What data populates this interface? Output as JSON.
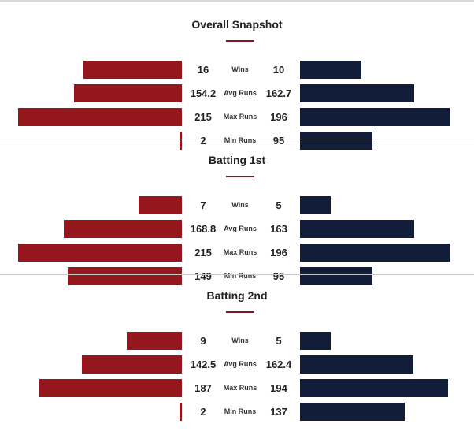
{
  "colors": {
    "left": "#96161e",
    "right": "#121d3a",
    "accent": "#7a1a26"
  },
  "chart_data": {
    "type": "bar",
    "orientation": "diverging-horizontal",
    "series": [
      {
        "color": "#96161e"
      },
      {
        "color": "#121d3a"
      }
    ],
    "sections": [
      {
        "title": "Overall Snapshot",
        "rows": [
          {
            "metric": "Wins",
            "left": 16,
            "left_label": "16",
            "right": 10,
            "right_label": "10"
          },
          {
            "metric": "Avg Runs",
            "left": 154.2,
            "left_label": "154.2",
            "right": 162.7,
            "right_label": "162.7"
          },
          {
            "metric": "Max Runs",
            "left": 215,
            "left_label": "215",
            "right": 196,
            "right_label": "196"
          },
          {
            "metric": "Min Runs",
            "left": 2,
            "left_label": "2",
            "right": 95,
            "right_label": "95"
          }
        ]
      },
      {
        "title": "Batting 1st",
        "rows": [
          {
            "metric": "Wins",
            "left": 7,
            "left_label": "7",
            "right": 5,
            "right_label": "5"
          },
          {
            "metric": "Avg Runs",
            "left": 168.8,
            "left_label": "168.8",
            "right": 163,
            "right_label": "163"
          },
          {
            "metric": "Max Runs",
            "left": 215,
            "left_label": "215",
            "right": 196,
            "right_label": "196"
          },
          {
            "metric": "Min Runs",
            "left": 149,
            "left_label": "149",
            "right": 95,
            "right_label": "95"
          }
        ]
      },
      {
        "title": "Batting 2nd",
        "rows": [
          {
            "metric": "Wins",
            "left": 9,
            "left_label": "9",
            "right": 5,
            "right_label": "5"
          },
          {
            "metric": "Avg Runs",
            "left": 142.5,
            "left_label": "142.5",
            "right": 162.4,
            "right_label": "162.4"
          },
          {
            "metric": "Max Runs",
            "left": 187,
            "left_label": "187",
            "right": 194,
            "right_label": "194"
          },
          {
            "metric": "Min Runs",
            "left": 2,
            "left_label": "2",
            "right": 137,
            "right_label": "137"
          }
        ]
      }
    ]
  }
}
